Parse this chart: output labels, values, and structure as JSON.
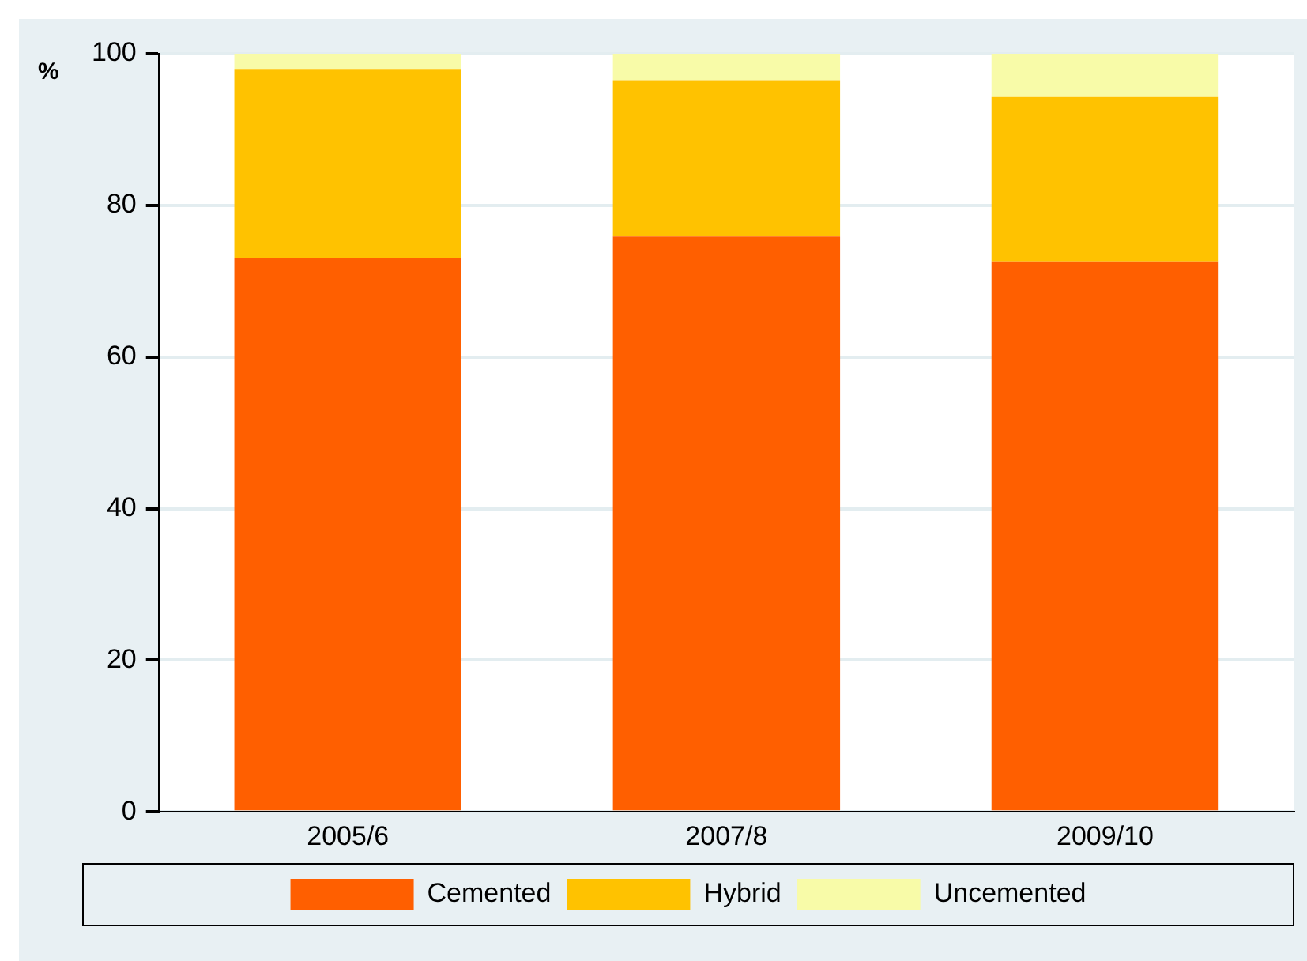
{
  "chart_data": {
    "type": "bar",
    "ylabel": "%",
    "categories": [
      "2005/6",
      "2007/8",
      "2009/10"
    ],
    "stacked": true,
    "series": [
      {
        "name": "Cemented",
        "color": "#ff5f00",
        "values": [
          73.0,
          75.9,
          72.6
        ]
      },
      {
        "name": "Hybrid",
        "color": "#ffc200",
        "values": [
          25.0,
          20.6,
          21.7
        ]
      },
      {
        "name": "Uncemented",
        "color": "#f8fba8",
        "values": [
          2.0,
          3.5,
          5.7
        ]
      }
    ],
    "ylim": [
      0,
      100
    ],
    "yticks": [
      0,
      20,
      40,
      60,
      80,
      100
    ],
    "grid": "y",
    "legend": "bottom"
  }
}
